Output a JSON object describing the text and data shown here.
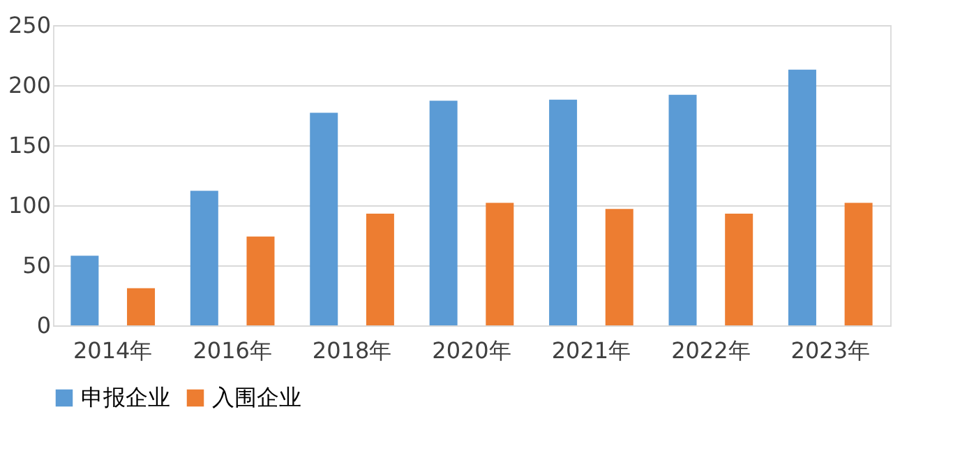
{
  "chart_data": {
    "type": "bar",
    "categories": [
      "2014年",
      "2016年",
      "2018年",
      "2020年",
      "2021年",
      "2022年",
      "2023年"
    ],
    "series": [
      {
        "name": "申报企业",
        "color": "#5b9bd5",
        "values": [
          58,
          112,
          177,
          187,
          188,
          192,
          213
        ]
      },
      {
        "name": "入围企业",
        "color": "#ed7d31",
        "values": [
          31,
          74,
          93,
          102,
          97,
          93,
          102
        ]
      }
    ],
    "ylim": [
      0,
      250
    ],
    "yticks": [
      0,
      50,
      100,
      150,
      200,
      250
    ],
    "grid": "y",
    "legend": "bottom"
  }
}
